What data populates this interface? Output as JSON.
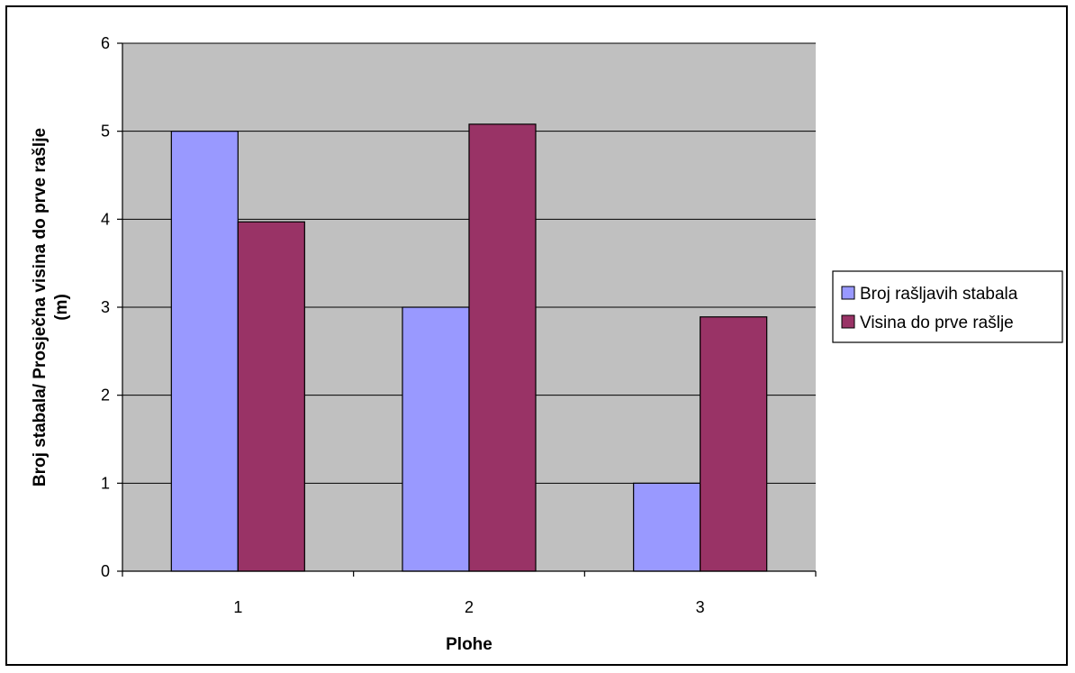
{
  "chart_data": {
    "type": "bar",
    "categories": [
      "1",
      "2",
      "3"
    ],
    "series": [
      {
        "name": "Broj rašljavih stabala",
        "values": [
          5,
          3,
          1
        ],
        "color": "#9999ff"
      },
      {
        "name": "Visina do prve rašlje",
        "values": [
          3.97,
          5.08,
          2.89
        ],
        "color": "#993366"
      }
    ],
    "xlabel": "Plohe",
    "ylabel_line1": "Broj stabala/ Prosječna visina do prve rašlje",
    "ylabel_line2": "(m)",
    "ylim": [
      0,
      6
    ],
    "yticks": [
      "0",
      "1",
      "2",
      "3",
      "4",
      "5",
      "6"
    ],
    "grid": true,
    "plot_background": "#c0c0c0",
    "legend_position": "right"
  }
}
